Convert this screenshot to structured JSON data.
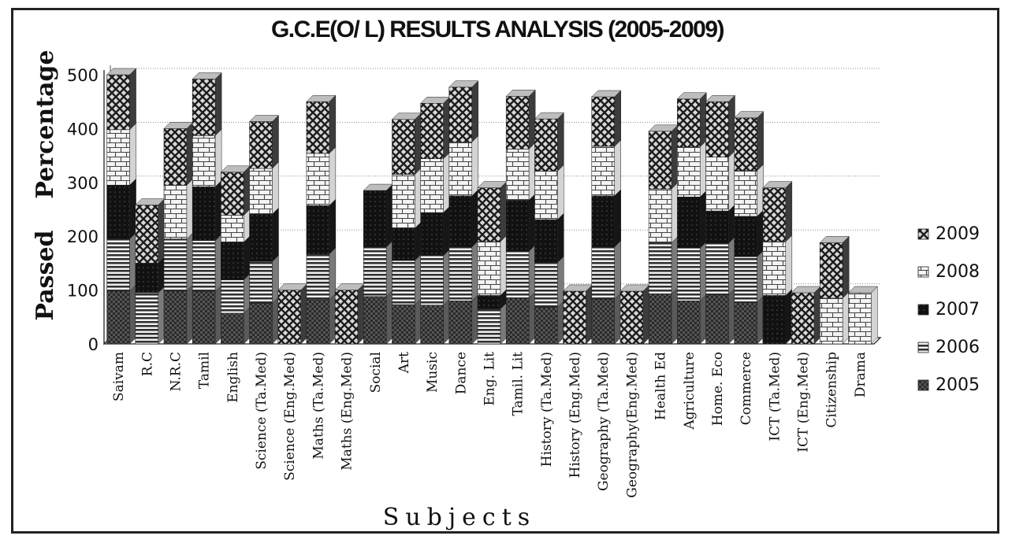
{
  "chart_data": {
    "type": "bar",
    "stacked": true,
    "title": "G.C.E(O/ L) RESULTS ANALYSIS  (2005-2009)",
    "ylabel_line1": "Passed",
    "ylabel_line2": "Percentage",
    "xlabel": "Subjects",
    "ylim": [
      0,
      500
    ],
    "yticks": [
      "0",
      "100",
      "200",
      "300",
      "400",
      "500"
    ],
    "grid": true,
    "legend_position": "right",
    "categories": [
      "Saivam",
      "R.C",
      "N.R.C",
      "Tamil",
      "English",
      "Science (Ta.Med)",
      "Science (Eng.Med)",
      "Maths (Ta.Med)",
      "Maths (Eng.Med)",
      "Social",
      "Art",
      "Music",
      "Dance",
      "Eng. Lit",
      "Tamil. Lit",
      "History (Ta.Med)",
      "History (Eng.Med)",
      "Geography (Ta.Med)",
      "Geography(Eng.Med)",
      "Health Ed",
      "Agriculture",
      "Home. Eco",
      "Commerce",
      "ICT (Ta.Med)",
      "ICT (Eng.Med)",
      "Citizenship",
      "Drama"
    ],
    "series": [
      {
        "name": "2005",
        "color": "#5a5a5a",
        "values": [
          98,
          0,
          98,
          97,
          57,
          75,
          0,
          82,
          0,
          88,
          73,
          72,
          80,
          0,
          85,
          68,
          0,
          83,
          0,
          93,
          80,
          91,
          77,
          0,
          0,
          0,
          0
        ]
      },
      {
        "name": "2006",
        "color": "#7a7a7a",
        "values": [
          97,
          95,
          97,
          95,
          62,
          78,
          0,
          85,
          0,
          92,
          82,
          92,
          100,
          65,
          87,
          83,
          0,
          97,
          0,
          95,
          98,
          96,
          85,
          0,
          0,
          0,
          0
        ]
      },
      {
        "name": "2007",
        "color": "#161616",
        "values": [
          100,
          55,
          0,
          100,
          70,
          88,
          0,
          90,
          0,
          105,
          60,
          80,
          95,
          25,
          95,
          80,
          0,
          95,
          0,
          0,
          95,
          60,
          75,
          90,
          0,
          0,
          0
        ]
      },
      {
        "name": "2008",
        "color": "#d4d4d4",
        "values": [
          103,
          0,
          100,
          95,
          50,
          85,
          0,
          97,
          0,
          0,
          100,
          100,
          100,
          100,
          95,
          90,
          0,
          92,
          0,
          100,
          93,
          100,
          85,
          100,
          0,
          85,
          95
        ]
      },
      {
        "name": "2009",
        "color": "#3c3c3c",
        "values": [
          102,
          108,
          105,
          105,
          80,
          87,
          100,
          96,
          100,
          0,
          102,
          103,
          102,
          100,
          98,
          97,
          98,
          92,
          98,
          107,
          89,
          103,
          98,
          100,
          95,
          103,
          0
        ]
      }
    ]
  }
}
